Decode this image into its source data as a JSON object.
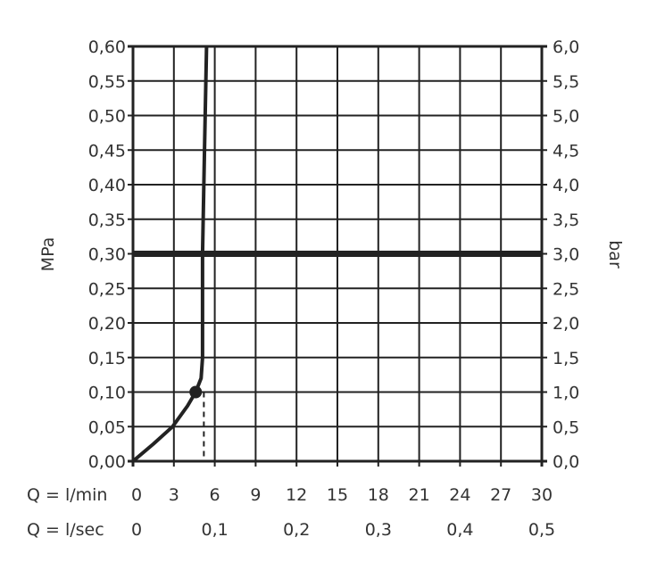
{
  "chart_data": {
    "type": "line",
    "xlabel": "Q = l/min",
    "x2label": "Q = l/sec",
    "ylabel": "MPa",
    "y2label": "bar",
    "xlim": [
      0,
      30
    ],
    "ylim": [
      0,
      0.6
    ],
    "grid": true,
    "x_ticks": [
      "0",
      "3",
      "6",
      "9",
      "12",
      "15",
      "18",
      "21",
      "24",
      "27",
      "30"
    ],
    "x_tick_values": [
      0,
      3,
      6,
      9,
      12,
      15,
      18,
      21,
      24,
      27,
      30
    ],
    "x2_ticks": [
      "0",
      "0,1",
      "0,2",
      "0,3",
      "0,4",
      "0,5"
    ],
    "x2_tick_positions_lmin": [
      0,
      6,
      12,
      18,
      24,
      30
    ],
    "y_ticks": [
      "0,00",
      "0,05",
      "0,10",
      "0,15",
      "0,20",
      "0,25",
      "0,30",
      "0,35",
      "0,40",
      "0,45",
      "0,50",
      "0,55",
      "0,60"
    ],
    "y2_ticks": [
      "0,0",
      "0,5",
      "1,0",
      "1,5",
      "2,0",
      "2,5",
      "3,0",
      "3,5",
      "4,0",
      "4,5",
      "5,0",
      "5,5",
      "6,0"
    ],
    "y_tick_values": [
      0,
      0.05,
      0.1,
      0.15,
      0.2,
      0.25,
      0.3,
      0.35,
      0.4,
      0.45,
      0.5,
      0.55,
      0.6
    ],
    "reference_line_y": 0.3,
    "series": [
      {
        "x": [
          0,
          1.5,
          2.9,
          4.0,
          4.6,
          5.0,
          5.1,
          5.1,
          5.25,
          5.4
        ],
        "y": [
          0,
          0.025,
          0.05,
          0.08,
          0.1,
          0.12,
          0.15,
          0.3,
          0.45,
          0.6
        ]
      }
    ],
    "marker": {
      "x": 4.6,
      "y": 0.1
    },
    "dashed_marker_line_x": 5.2,
    "colors": {
      "line": "#222222",
      "grid": "#222222",
      "text": "#333333"
    }
  }
}
